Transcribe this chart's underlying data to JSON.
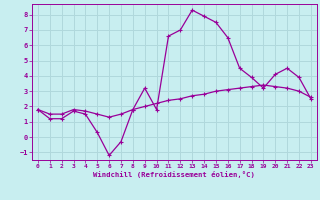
{
  "xlabel": "Windchill (Refroidissement éolien,°C)",
  "background_color": "#c8eef0",
  "grid_color": "#b0d8dc",
  "line_color": "#990099",
  "hours": [
    0,
    1,
    2,
    3,
    4,
    5,
    6,
    7,
    8,
    9,
    10,
    11,
    12,
    13,
    14,
    15,
    16,
    17,
    18,
    19,
    20,
    21,
    22,
    23
  ],
  "windchill": [
    1.8,
    1.2,
    1.2,
    1.7,
    1.5,
    0.3,
    -1.2,
    -0.3,
    1.8,
    3.2,
    1.8,
    6.6,
    7.0,
    8.3,
    7.9,
    7.5,
    6.5,
    4.5,
    3.9,
    3.2,
    4.1,
    4.5,
    3.9,
    2.5
  ],
  "temp": [
    1.8,
    1.5,
    1.5,
    1.8,
    1.7,
    1.5,
    1.3,
    1.5,
    1.8,
    2.0,
    2.2,
    2.4,
    2.5,
    2.7,
    2.8,
    3.0,
    3.1,
    3.2,
    3.3,
    3.4,
    3.3,
    3.2,
    3.0,
    2.6
  ],
  "ylim": [
    -1.5,
    8.7
  ],
  "yticks": [
    -1,
    0,
    1,
    2,
    3,
    4,
    5,
    6,
    7,
    8
  ],
  "xlim": [
    -0.5,
    23.5
  ],
  "figsize": [
    3.2,
    2.0
  ],
  "dpi": 100
}
